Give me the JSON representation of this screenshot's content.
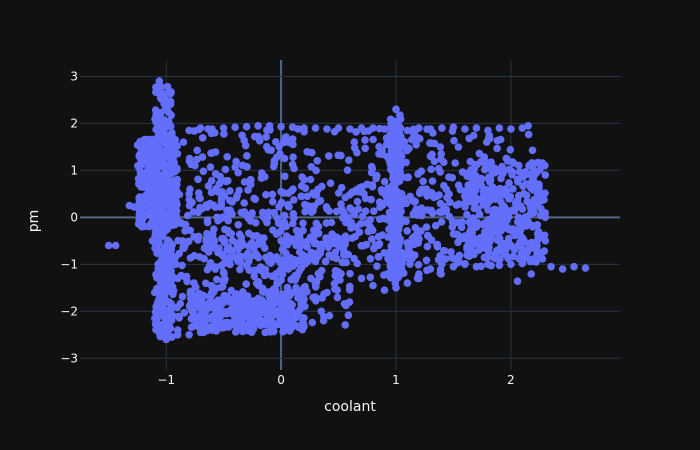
{
  "chart_data": {
    "type": "scatter",
    "xlabel": "coolant",
    "ylabel": "pm",
    "xlim": [
      -1.75,
      2.95
    ],
    "ylim": [
      -3.25,
      3.35
    ],
    "xticks": [
      -1,
      0,
      1,
      2
    ],
    "yticks": [
      -3,
      -2,
      -1,
      0,
      1,
      2,
      3
    ],
    "xtick_labels": [
      "−1",
      "0",
      "1",
      "2"
    ],
    "ytick_labels": [
      "−3",
      "−2",
      "−1",
      "0",
      "1",
      "2",
      "3"
    ],
    "grid": true,
    "legend": "none",
    "series": [
      {
        "color": "#636efa",
        "points": [
          [
            -1.5,
            -0.6
          ],
          [
            -1.44,
            -0.6
          ],
          [
            -1.32,
            0.25
          ],
          [
            -1.28,
            0.22
          ],
          [
            -1.22,
            0.65
          ],
          [
            -1.22,
            1.5
          ],
          [
            -1.18,
            1.42
          ],
          [
            -1.15,
            1.35
          ],
          [
            -1.15,
            0.2
          ],
          [
            -1.12,
            -0.5
          ],
          [
            -1.1,
            -1.6
          ],
          [
            -1.08,
            -2.4
          ],
          [
            -1.06,
            2.9
          ],
          [
            -1.04,
            2.6
          ],
          [
            -1.06,
            2.0
          ],
          [
            -1.08,
            1.2
          ],
          [
            -1.06,
            0.3
          ],
          [
            -1.05,
            -0.3
          ],
          [
            -1.07,
            -1.0
          ],
          [
            -1.05,
            -2.0
          ],
          [
            -1.03,
            -2.5
          ],
          [
            -1.0,
            -2.6
          ],
          [
            -0.95,
            -2.55
          ],
          [
            -0.9,
            -2.5
          ],
          [
            -1.0,
            -0.8
          ],
          [
            -1.0,
            1.75
          ],
          [
            -0.95,
            1.8
          ],
          [
            -0.85,
            1.6
          ],
          [
            -0.8,
            1.85
          ],
          [
            -0.7,
            1.9
          ],
          [
            -0.6,
            1.88
          ],
          [
            -0.5,
            1.9
          ],
          [
            -0.4,
            1.92
          ],
          [
            -0.3,
            1.93
          ],
          [
            -0.2,
            1.95
          ],
          [
            -0.1,
            1.95
          ],
          [
            0.0,
            1.93
          ],
          [
            0.1,
            1.92
          ],
          [
            0.2,
            1.9
          ],
          [
            0.3,
            1.9
          ],
          [
            0.4,
            1.88
          ],
          [
            0.5,
            1.9
          ],
          [
            0.6,
            1.88
          ],
          [
            0.7,
            1.9
          ],
          [
            0.8,
            1.9
          ],
          [
            0.9,
            1.88
          ],
          [
            1.0,
            2.3
          ],
          [
            1.1,
            1.85
          ],
          [
            1.2,
            1.9
          ],
          [
            1.3,
            1.88
          ],
          [
            1.4,
            1.9
          ],
          [
            1.5,
            1.92
          ],
          [
            1.6,
            1.88
          ],
          [
            1.7,
            1.9
          ],
          [
            1.8,
            1.85
          ],
          [
            1.9,
            1.9
          ],
          [
            2.0,
            1.88
          ],
          [
            2.1,
            1.9
          ],
          [
            2.15,
            1.95
          ],
          [
            2.3,
            0.9
          ],
          [
            2.3,
            0.0
          ],
          [
            2.3,
            -0.5
          ],
          [
            2.22,
            -0.95
          ],
          [
            2.1,
            -0.98
          ],
          [
            2.0,
            -1.0
          ],
          [
            1.9,
            -1.02
          ],
          [
            1.8,
            -1.0
          ],
          [
            1.7,
            -1.05
          ],
          [
            1.6,
            -1.0
          ],
          [
            1.5,
            -1.05
          ],
          [
            1.4,
            -1.0
          ],
          [
            1.3,
            -1.1
          ],
          [
            1.2,
            -1.3
          ],
          [
            1.1,
            -1.4
          ],
          [
            1.0,
            -1.5
          ],
          [
            0.9,
            -1.55
          ],
          [
            0.8,
            -1.45
          ],
          [
            0.7,
            -1.3
          ],
          [
            0.6,
            -1.2
          ],
          [
            0.5,
            -1.25
          ],
          [
            0.4,
            -1.6
          ],
          [
            0.37,
            -2.2
          ],
          [
            0.35,
            -2.0
          ],
          [
            0.3,
            -1.7
          ],
          [
            0.2,
            -1.5
          ],
          [
            0.1,
            -1.6
          ],
          [
            0.0,
            -1.65
          ],
          [
            -0.1,
            -1.7
          ],
          [
            -0.2,
            -1.8
          ],
          [
            -0.1,
            -2.2
          ],
          [
            -0.15,
            -2.0
          ],
          [
            -0.25,
            -2.3
          ],
          [
            -0.4,
            -2.3
          ],
          [
            -0.5,
            -2.35
          ],
          [
            -0.6,
            -2.4
          ],
          [
            -0.7,
            -2.45
          ],
          [
            -0.8,
            -2.5
          ],
          [
            -0.9,
            -2.4
          ],
          [
            2.55,
            -1.05
          ],
          [
            2.65,
            -1.08
          ],
          [
            2.45,
            -1.1
          ],
          [
            2.35,
            -1.05
          ],
          [
            -0.8,
            0.5
          ],
          [
            0.2,
            0.8
          ],
          [
            0.6,
            0.2
          ],
          [
            1.3,
            1.3
          ],
          [
            1.8,
            0.3
          ],
          [
            0.0,
            -0.5
          ],
          [
            1.6,
            -0.4
          ],
          [
            -0.5,
            0.0
          ]
        ],
        "regions": [
          {
            "x": [
              -0.95,
              2.2
            ],
            "y": [
              -1.4,
              1.88
            ]
          },
          {
            "x": [
              -0.8,
              1.9
            ],
            "y": [
              -1.0,
              1.9
            ]
          },
          {
            "x": [
              -1.0,
              0.6
            ],
            "y": [
              -2.3,
              -0.4
            ]
          },
          {
            "x": [
              -0.8,
              0.2
            ],
            "y": [
              -2.45,
              -1.5
            ]
          },
          {
            "x": [
              1.6,
              2.3
            ],
            "y": [
              -0.95,
              1.2
            ]
          },
          {
            "x": [
              -1.1,
              -0.95
            ],
            "y": [
              -2.55,
              2.8
            ]
          },
          {
            "x": [
              -1.25,
              -0.9
            ],
            "y": [
              -0.2,
              1.7
            ]
          },
          {
            "x": [
              0.95,
              1.05
            ],
            "y": [
              -1.3,
              2.2
            ]
          },
          {
            "x": [
              -0.95,
              2.3
            ],
            "y": [
              -0.9,
              0.7
            ]
          }
        ]
      }
    ]
  }
}
